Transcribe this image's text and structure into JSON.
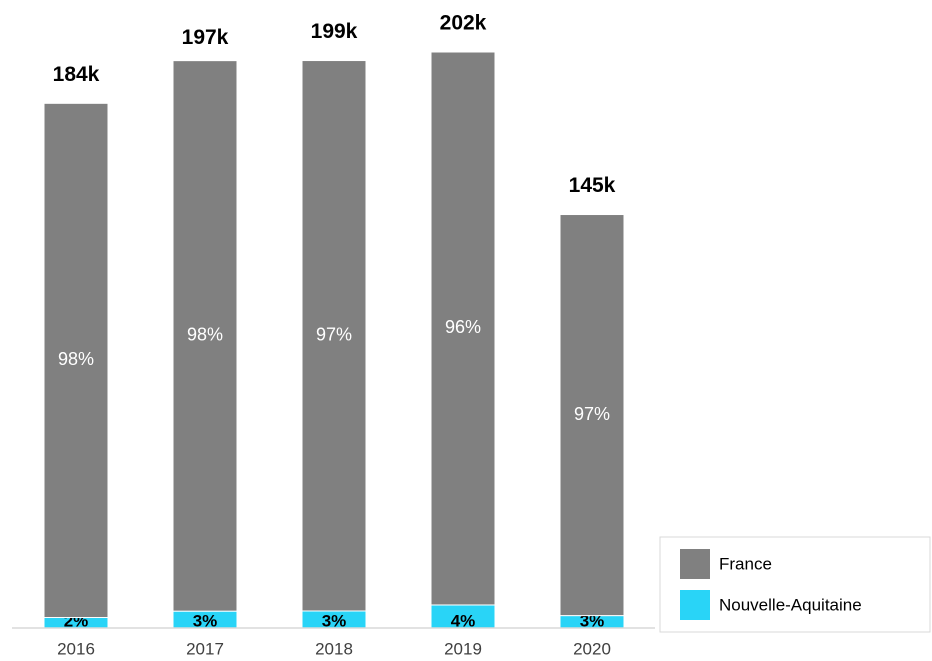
{
  "chart_data": {
    "type": "stacked_bar_share",
    "categories": [
      "2016",
      "2017",
      "2018",
      "2019",
      "2020"
    ],
    "totals": {
      "values": [
        184000,
        197000,
        199000,
        202000,
        145000
      ],
      "value_labels": [
        "184k",
        "197k",
        "199k",
        "202k",
        "145k"
      ]
    },
    "series": [
      {
        "name": "Nouvelle-Aquitaine",
        "color": "#29d4f7",
        "values": [
          2,
          3,
          3,
          4,
          3
        ],
        "value_labels": [
          "2%",
          "3%",
          "3%",
          "4%",
          "3%"
        ]
      },
      {
        "name": "France",
        "color": "#808080",
        "values": [
          98,
          98,
          97,
          96,
          97
        ],
        "value_labels": [
          "98%",
          "98%",
          "97%",
          "96%",
          "97%"
        ]
      }
    ],
    "legend": "bottom-right"
  }
}
